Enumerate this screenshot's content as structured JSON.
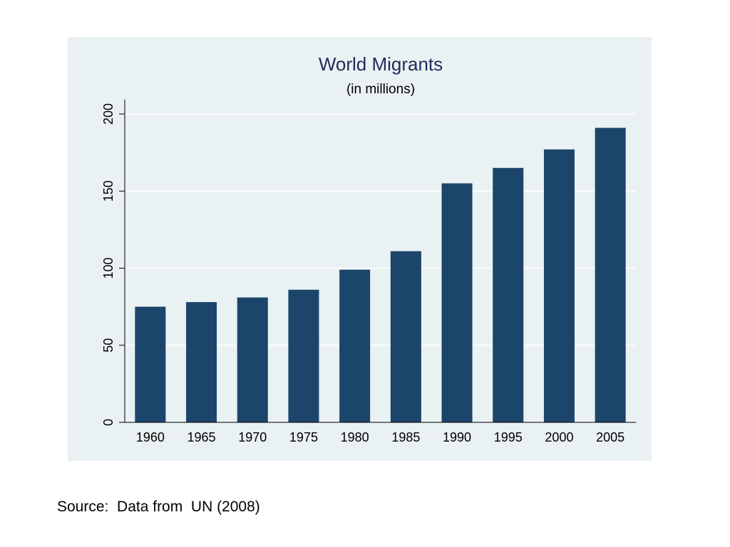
{
  "chart_data": {
    "type": "bar",
    "title": "World Migrants",
    "subtitle": "(in millions)",
    "xlabel": "",
    "ylabel": "",
    "categories": [
      "1960",
      "1965",
      "1970",
      "1975",
      "1980",
      "1985",
      "1990",
      "1995",
      "2000",
      "2005"
    ],
    "values": [
      75,
      78,
      81,
      86,
      99,
      111,
      155,
      165,
      177,
      191
    ],
    "ylim": [
      0,
      200
    ],
    "yticks": [
      0,
      50,
      100,
      150,
      200
    ],
    "grid": true,
    "colors": {
      "bar": "#1c456b",
      "plot_background": "#eaf1f3",
      "title": "#1f2d5a",
      "gridline": "#ffffff",
      "axis": "#000000"
    }
  },
  "source": "Source:  Data from  UN (2008)"
}
